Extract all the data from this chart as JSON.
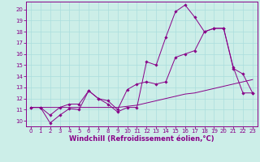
{
  "xlabel": "Windchill (Refroidissement éolien,°C)",
  "xlim": [
    -0.5,
    23.5
  ],
  "ylim": [
    9.5,
    20.7
  ],
  "yticks": [
    10,
    11,
    12,
    13,
    14,
    15,
    16,
    17,
    18,
    19,
    20
  ],
  "xticks": [
    0,
    1,
    2,
    3,
    4,
    5,
    6,
    7,
    8,
    9,
    10,
    11,
    12,
    13,
    14,
    15,
    16,
    17,
    18,
    19,
    20,
    21,
    22,
    23
  ],
  "bg_color": "#cceee8",
  "line_color": "#880088",
  "line1_x": [
    0,
    1,
    2,
    3,
    4,
    5,
    6,
    7,
    8,
    9,
    10,
    11,
    12,
    13,
    14,
    15,
    16,
    17,
    18,
    19,
    20,
    21,
    22,
    23
  ],
  "line1_y": [
    11.2,
    11.2,
    11.2,
    11.2,
    11.2,
    11.2,
    11.2,
    11.2,
    11.2,
    11.2,
    11.3,
    11.4,
    11.6,
    11.8,
    12.0,
    12.2,
    12.4,
    12.5,
    12.7,
    12.9,
    13.1,
    13.3,
    13.5,
    13.7
  ],
  "line2_x": [
    0,
    1,
    2,
    3,
    4,
    5,
    6,
    7,
    8,
    9,
    10,
    11,
    12,
    13,
    14,
    15,
    16,
    17,
    18,
    19,
    20,
    21,
    22,
    23
  ],
  "line2_y": [
    11.2,
    11.2,
    9.8,
    10.5,
    11.1,
    11.0,
    12.7,
    12.0,
    11.5,
    10.8,
    11.2,
    11.2,
    15.3,
    15.0,
    17.5,
    19.8,
    20.4,
    19.3,
    18.0,
    18.3,
    18.3,
    14.7,
    14.2,
    12.5
  ],
  "line3_x": [
    0,
    1,
    2,
    3,
    4,
    5,
    6,
    7,
    8,
    9,
    10,
    11,
    12,
    13,
    14,
    15,
    16,
    17,
    18,
    19,
    20,
    21,
    22,
    23
  ],
  "line3_y": [
    11.2,
    11.2,
    10.5,
    11.2,
    11.5,
    11.5,
    12.7,
    12.0,
    11.8,
    11.0,
    12.8,
    13.3,
    13.5,
    13.3,
    13.5,
    15.7,
    16.0,
    16.3,
    18.0,
    18.3,
    18.3,
    14.8,
    12.5,
    12.5
  ],
  "grid_color": "#aadddd",
  "tick_label_fontsize": 5.0,
  "xlabel_fontsize": 6.0
}
